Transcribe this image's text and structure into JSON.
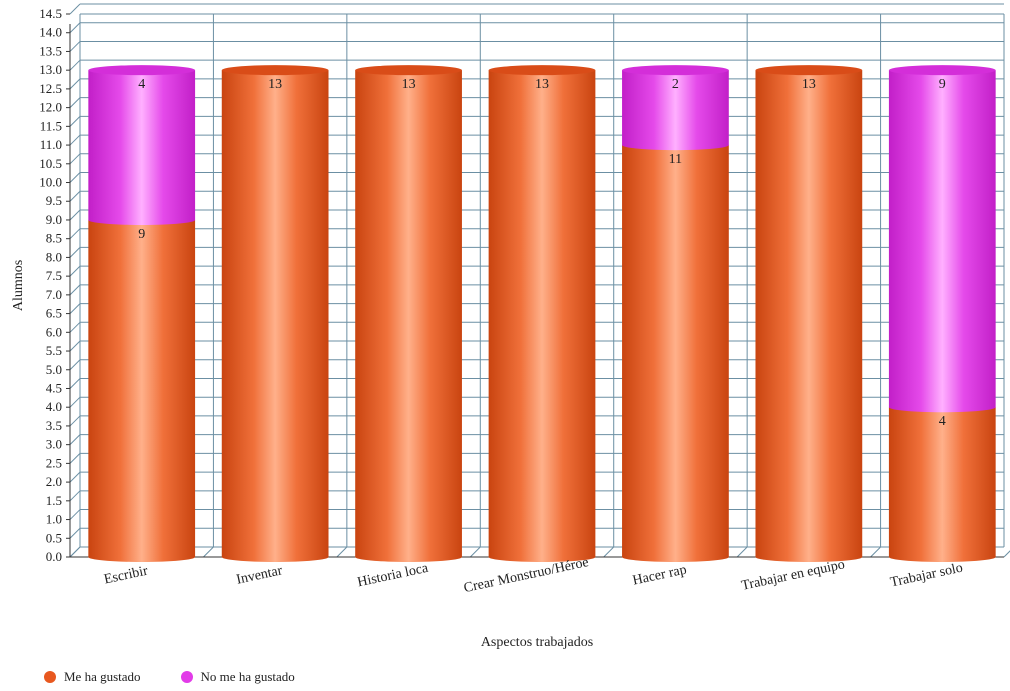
{
  "chart_data": {
    "type": "bar",
    "stacked": true,
    "style": "3d-cylinder",
    "categories": [
      "Escribir",
      "Inventar",
      "Historia loca",
      "Crear Monstruo/Héroe",
      "Hacer rap",
      "Trabajar en equipo",
      "Trabajar solo"
    ],
    "series": [
      {
        "name": "Me ha gustado",
        "color": "#e8581f",
        "values": [
          9,
          13,
          13,
          13,
          11,
          13,
          4
        ]
      },
      {
        "name": "No me ha gustado",
        "color": "#e23be8",
        "values": [
          4,
          0,
          0,
          0,
          2,
          0,
          9
        ]
      }
    ],
    "xlabel": "Aspectos trabajados",
    "ylabel": "Alumnos",
    "ylim": [
      0,
      14.5
    ],
    "ytick_step": 0.5,
    "grid": true,
    "legend_position": "bottom-left"
  }
}
